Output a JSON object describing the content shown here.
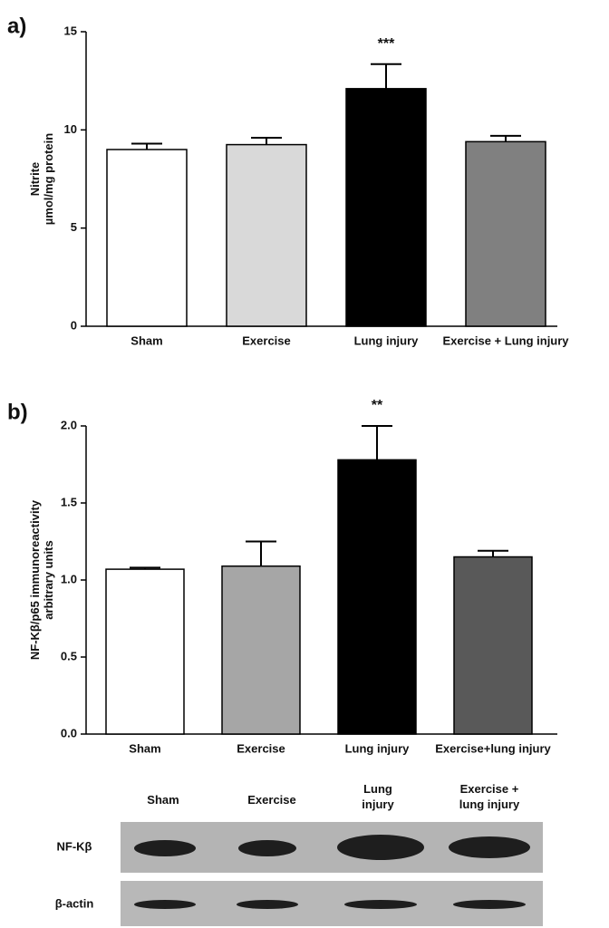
{
  "chart_data": [
    {
      "type": "bar",
      "panel": "a)",
      "ylabel": [
        "Nitrite",
        "µmol/mg protein"
      ],
      "categories": [
        "Sham",
        "Exercise",
        "Lung injury",
        "Exercise + Lung injury"
      ],
      "values": [
        9.0,
        9.25,
        12.1,
        9.4
      ],
      "errors": [
        0.3,
        0.35,
        1.25,
        0.3
      ],
      "colors": [
        "#ffffff",
        "#d9d9d9",
        "#000000",
        "#808080"
      ],
      "annotations": [
        {
          "text": "***",
          "category": "Lung injury"
        }
      ],
      "ylim": [
        0,
        15
      ],
      "yticks": [
        0,
        5,
        10,
        15
      ]
    },
    {
      "type": "bar",
      "panel": "b)",
      "ylabel": [
        "NF-Kβ/p65 immunoreactivity",
        "arbitrary units"
      ],
      "categories": [
        "Sham",
        "Exercise",
        "Lung injury",
        "Exercise+lung injury"
      ],
      "values": [
        1.07,
        1.09,
        1.78,
        1.15
      ],
      "errors": [
        0.01,
        0.16,
        0.22,
        0.04
      ],
      "colors": [
        "#ffffff",
        "#a6a6a6",
        "#000000",
        "#595959"
      ],
      "annotations": [
        {
          "text": "**",
          "category": "Lung injury"
        }
      ],
      "ylim": [
        0,
        2
      ],
      "yticks": [
        {
          "value": 0,
          "label": "0.0"
        },
        0.5,
        {
          "value": 1,
          "label": "1.0"
        },
        1.5,
        {
          "value": 2,
          "label": "2.0"
        }
      ]
    }
  ],
  "blot": {
    "columns": [
      [
        "Sham"
      ],
      [
        "Exercise"
      ],
      [
        "Lung",
        "injury"
      ],
      [
        "Exercise +",
        "lung injury"
      ]
    ],
    "rows": [
      "NF-Kβ",
      "β-actin"
    ]
  }
}
